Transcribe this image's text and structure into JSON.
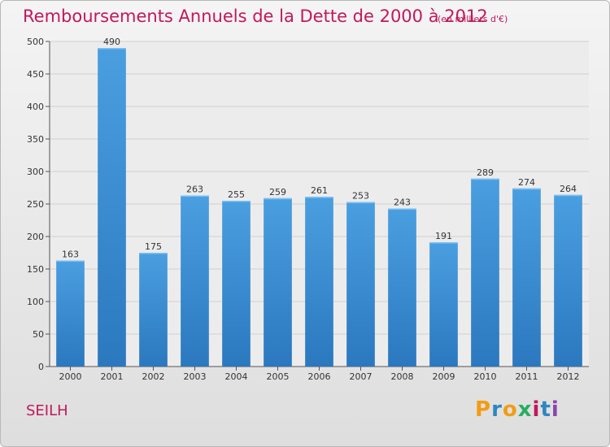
{
  "header": {
    "title": "Remboursements Annuels de la Dette de 2000 à 2012",
    "subtitle": "(en milliers d'€)"
  },
  "footer": {
    "commune": "SEILH",
    "logo": {
      "letters": [
        "P",
        "r",
        "o",
        "x",
        "i",
        "t",
        "i"
      ],
      "colors": [
        "#f39c12",
        "#2e86c1",
        "#f39c12",
        "#27ae60",
        "#c2185b",
        "#2e86c1",
        "#8e44ad"
      ]
    }
  },
  "colors": {
    "bar": "#4a9fe0",
    "bar_dark": "#2b78bf",
    "accent": "#c2185b",
    "grid": "#cfcfcf"
  },
  "chart_data": {
    "type": "bar",
    "title": "Remboursements Annuels de la Dette de 2000 à 2012",
    "subtitle": "(en milliers d'€)",
    "categories": [
      "2000",
      "2001",
      "2002",
      "2003",
      "2004",
      "2005",
      "2006",
      "2007",
      "2008",
      "2009",
      "2010",
      "2011",
      "2012"
    ],
    "values": [
      163,
      490,
      175,
      263,
      255,
      259,
      261,
      253,
      243,
      191,
      289,
      274,
      264
    ],
    "ylim": [
      0,
      500
    ],
    "yticks": [
      0,
      50,
      100,
      150,
      200,
      250,
      300,
      350,
      400,
      450,
      500
    ],
    "grid": true,
    "data_labels": true
  }
}
